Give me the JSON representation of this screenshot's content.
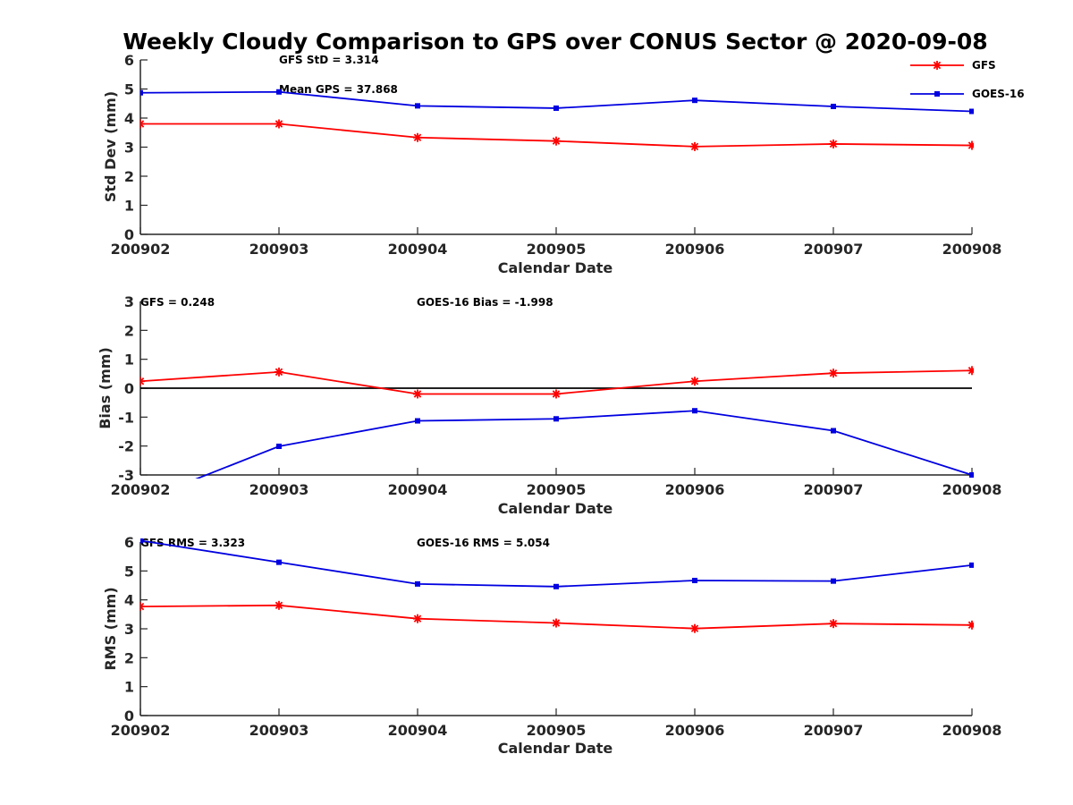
{
  "title": "Weekly Cloudy Comparison to GPS over CONUS Sector @ 2020-09-08",
  "colors": {
    "GFS": "#ff0000",
    "GOES-16": "#0000e0",
    "axis": "#262626",
    "zero_line": "#000000"
  },
  "chart_data": [
    {
      "type": "line",
      "xlabel": "Calendar Date",
      "ylabel": "Std Dev (mm)",
      "ylim": [
        0,
        6
      ],
      "yticks": [
        0,
        1,
        2,
        3,
        4,
        5,
        6
      ],
      "categories": [
        "200902",
        "200903",
        "200904",
        "200905",
        "200906",
        "200907",
        "200908"
      ],
      "series": [
        {
          "name": "GFS",
          "marker": "asterisk",
          "values": [
            3.8,
            3.8,
            3.33,
            3.21,
            3.02,
            3.11,
            3.06
          ]
        },
        {
          "name": "GOES-16",
          "marker": "square",
          "values": [
            4.87,
            4.9,
            4.42,
            4.34,
            4.61,
            4.4,
            4.23
          ]
        }
      ],
      "annotations": [
        "GFS StD = 3.314",
        "Mean GPS = 37.868"
      ],
      "legend": {
        "placement": "top-right",
        "entries": [
          "GFS",
          "GOES-16"
        ]
      },
      "grid": false
    },
    {
      "type": "line",
      "xlabel": "Calendar Date",
      "ylabel": "Bias (mm)",
      "ylim": [
        -3,
        3
      ],
      "yticks": [
        -3,
        -2,
        -1,
        0,
        1,
        2,
        3
      ],
      "zero_line": true,
      "categories": [
        "200902",
        "200903",
        "200904",
        "200905",
        "200906",
        "200907",
        "200908"
      ],
      "series": [
        {
          "name": "GFS",
          "marker": "asterisk",
          "values": [
            0.24,
            0.56,
            -0.2,
            -0.2,
            0.24,
            0.52,
            0.61
          ]
        },
        {
          "name": "GOES-16",
          "marker": "square",
          "values": [
            -3.9,
            -2.01,
            -1.13,
            -1.06,
            -0.78,
            -1.47,
            -3.0
          ]
        }
      ],
      "annotations": [
        "GFS = 0.248",
        "GOES-16 Bias  = -1.998"
      ],
      "grid": false
    },
    {
      "type": "line",
      "xlabel": "Calendar Date",
      "ylabel": "RMS (mm)",
      "ylim": [
        0,
        6
      ],
      "yticks": [
        0,
        1,
        2,
        3,
        4,
        5,
        6
      ],
      "categories": [
        "200902",
        "200903",
        "200904",
        "200905",
        "200906",
        "200907",
        "200908"
      ],
      "series": [
        {
          "name": "GFS",
          "marker": "asterisk",
          "values": [
            3.77,
            3.81,
            3.35,
            3.2,
            3.01,
            3.18,
            3.13
          ]
        },
        {
          "name": "GOES-16",
          "marker": "square",
          "values": [
            6.05,
            5.3,
            4.55,
            4.46,
            4.67,
            4.65,
            5.2
          ]
        }
      ],
      "annotations": [
        "GFS RMS = 3.323",
        "GOES-16 RMS = 5.054"
      ],
      "grid": false
    }
  ]
}
